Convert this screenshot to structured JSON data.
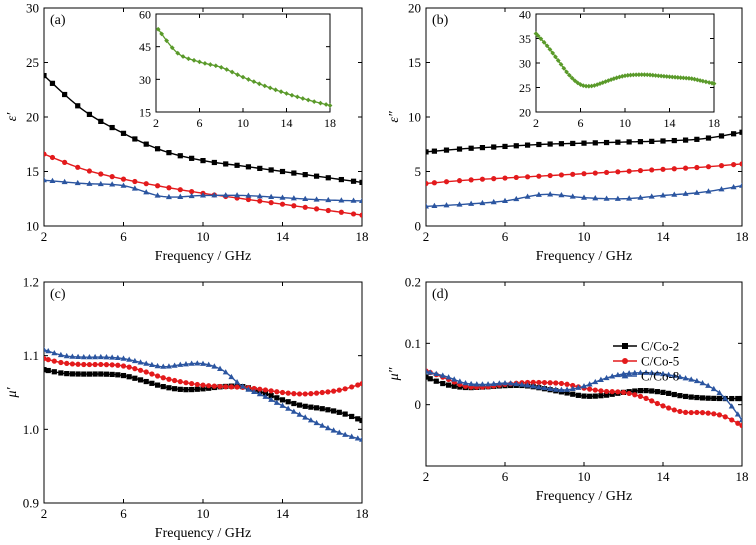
{
  "figure": {
    "legend": [
      {
        "name": "C/Co-2",
        "color": "#000000",
        "marker": "square"
      },
      {
        "name": "C/Co-5",
        "color": "#e31a1c",
        "marker": "circle"
      },
      {
        "name": "C/Co-8",
        "color": "#2b55a0",
        "marker": "triangle"
      }
    ],
    "inset_color": "#5a9a2a"
  },
  "chart_data": [
    {
      "type": "line",
      "panel": "(a)",
      "xlabel": "Frequency / GHz",
      "ylabel": "ε′",
      "xlim": [
        2,
        18
      ],
      "ylim": [
        10,
        30
      ],
      "xticks": [
        2,
        6,
        10,
        14,
        18
      ],
      "yticks": [
        10,
        15,
        20,
        25,
        30
      ],
      "series": [
        {
          "name": "C/Co-2",
          "x": [
            2,
            4,
            6,
            8,
            10,
            12,
            14,
            16,
            18
          ],
          "y": [
            23.8,
            20.6,
            18.5,
            16.9,
            16.0,
            15.5,
            15.0,
            14.5,
            14.0
          ]
        },
        {
          "name": "C/Co-5",
          "x": [
            2,
            4,
            6,
            8,
            10,
            12,
            14,
            16,
            18
          ],
          "y": [
            16.6,
            15.2,
            14.3,
            13.6,
            13.0,
            12.5,
            12.0,
            11.5,
            11.0
          ]
        },
        {
          "name": "C/Co-8",
          "x": [
            2,
            4,
            6,
            8,
            10,
            12,
            14,
            16,
            18
          ],
          "y": [
            14.2,
            13.9,
            13.7,
            12.7,
            12.8,
            12.8,
            12.6,
            12.4,
            12.3
          ]
        }
      ],
      "inset": {
        "xlim": [
          2,
          18
        ],
        "ylim": [
          15,
          60
        ],
        "xticks": [
          2,
          6,
          10,
          14,
          18
        ],
        "yticks": [
          15,
          30,
          45,
          60
        ],
        "x": [
          2.2,
          4,
          6,
          8,
          10,
          12,
          14,
          16,
          18
        ],
        "y": [
          53,
          42,
          38,
          35.5,
          31,
          27,
          23.5,
          20.5,
          18
        ]
      }
    },
    {
      "type": "line",
      "panel": "(b)",
      "xlabel": "Frequency / GHz",
      "ylabel": "ε″",
      "xlim": [
        2,
        18
      ],
      "ylim": [
        0,
        20
      ],
      "xticks": [
        2,
        6,
        10,
        14,
        18
      ],
      "yticks": [
        0,
        5,
        10,
        15,
        20
      ],
      "series": [
        {
          "name": "C/Co-2",
          "x": [
            2,
            4,
            6,
            8,
            10,
            12,
            14,
            16,
            18
          ],
          "y": [
            6.8,
            7.1,
            7.3,
            7.5,
            7.6,
            7.7,
            7.8,
            8.0,
            8.6
          ]
        },
        {
          "name": "C/Co-5",
          "x": [
            2,
            4,
            6,
            8,
            10,
            12,
            14,
            16,
            18
          ],
          "y": [
            3.9,
            4.2,
            4.4,
            4.6,
            4.8,
            5.0,
            5.2,
            5.4,
            5.7
          ]
        },
        {
          "name": "C/Co-8",
          "x": [
            2,
            4,
            6,
            8,
            10,
            12,
            14,
            16,
            18
          ],
          "y": [
            1.8,
            2.0,
            2.3,
            2.9,
            2.6,
            2.5,
            2.8,
            3.1,
            3.7
          ]
        }
      ],
      "inset": {
        "xlim": [
          2,
          18
        ],
        "ylim": [
          20,
          40
        ],
        "xticks": [
          2,
          6,
          10,
          14,
          18
        ],
        "yticks": [
          20,
          25,
          30,
          35,
          40
        ],
        "x": [
          2,
          3,
          4,
          5,
          6,
          7,
          8,
          9,
          10,
          11,
          12,
          13,
          14,
          15,
          16,
          17,
          18
        ],
        "y": [
          36,
          33.5,
          30.5,
          27.5,
          25.6,
          25.3,
          26,
          26.8,
          27.4,
          27.6,
          27.6,
          27.4,
          27.2,
          27,
          26.8,
          26.3,
          25.8
        ]
      }
    },
    {
      "type": "line",
      "panel": "(c)",
      "xlabel": "Frequency / GHz",
      "ylabel": "μ′",
      "xlim": [
        2,
        18
      ],
      "ylim": [
        0.9,
        1.2
      ],
      "xticks": [
        2,
        6,
        10,
        14,
        18
      ],
      "yticks": [
        "0.9",
        "1.0",
        "1.1",
        "1.2"
      ],
      "series": [
        {
          "name": "C/Co-2",
          "x": [
            2,
            3,
            4,
            5,
            6,
            7,
            8,
            9,
            10,
            11,
            12,
            13,
            14,
            15,
            16,
            17,
            18
          ],
          "y": [
            1.081,
            1.076,
            1.075,
            1.075,
            1.073,
            1.066,
            1.058,
            1.054,
            1.055,
            1.058,
            1.058,
            1.05,
            1.04,
            1.032,
            1.028,
            1.022,
            1.012
          ]
        },
        {
          "name": "C/Co-5",
          "x": [
            2,
            3,
            4,
            5,
            6,
            7,
            8,
            9,
            10,
            11,
            12,
            13,
            14,
            15,
            16,
            17,
            18
          ],
          "y": [
            1.096,
            1.09,
            1.088,
            1.088,
            1.086,
            1.079,
            1.07,
            1.064,
            1.06,
            1.058,
            1.057,
            1.054,
            1.05,
            1.048,
            1.05,
            1.054,
            1.062
          ]
        },
        {
          "name": "C/Co-8",
          "x": [
            2,
            3,
            4,
            5,
            6,
            7,
            8,
            9,
            10,
            11,
            12,
            13,
            14,
            15,
            16,
            17,
            18
          ],
          "y": [
            1.108,
            1.1,
            1.098,
            1.098,
            1.096,
            1.09,
            1.085,
            1.088,
            1.089,
            1.08,
            1.058,
            1.046,
            1.032,
            1.018,
            1.005,
            0.994,
            0.986
          ]
        }
      ]
    },
    {
      "type": "line",
      "panel": "(d)",
      "xlabel": "Frequency / GHz",
      "ylabel": "μ″",
      "xlim": [
        2,
        18
      ],
      "ylim": [
        -0.1,
        0.2
      ],
      "xticks": [
        2,
        6,
        10,
        14,
        18
      ],
      "yticks": [
        "0",
        "0.1",
        "0.2"
      ],
      "series": [
        {
          "name": "C/Co-2",
          "x": [
            2,
            3,
            4,
            5,
            6,
            7,
            8,
            9,
            10,
            11,
            12,
            13,
            14,
            15,
            16,
            17,
            18
          ],
          "y": [
            0.045,
            0.033,
            0.028,
            0.029,
            0.031,
            0.031,
            0.026,
            0.02,
            0.014,
            0.015,
            0.02,
            0.023,
            0.02,
            0.014,
            0.011,
            0.01,
            0.01
          ]
        },
        {
          "name": "C/Co-5",
          "x": [
            2,
            3,
            4,
            5,
            6,
            7,
            8,
            9,
            10,
            11,
            12,
            13,
            14,
            15,
            16,
            17,
            18
          ],
          "y": [
            0.055,
            0.043,
            0.03,
            0.029,
            0.033,
            0.036,
            0.036,
            0.034,
            0.027,
            0.022,
            0.02,
            0.012,
            -0.002,
            -0.012,
            -0.013,
            -0.018,
            -0.034
          ]
        },
        {
          "name": "C/Co-8",
          "x": [
            2,
            3,
            4,
            5,
            6,
            7,
            8,
            9,
            10,
            11,
            12,
            13,
            14,
            15,
            16,
            17,
            18
          ],
          "y": [
            0.054,
            0.046,
            0.035,
            0.033,
            0.035,
            0.032,
            0.027,
            0.024,
            0.03,
            0.042,
            0.05,
            0.052,
            0.05,
            0.044,
            0.035,
            0.015,
            -0.025
          ]
        }
      ]
    }
  ]
}
